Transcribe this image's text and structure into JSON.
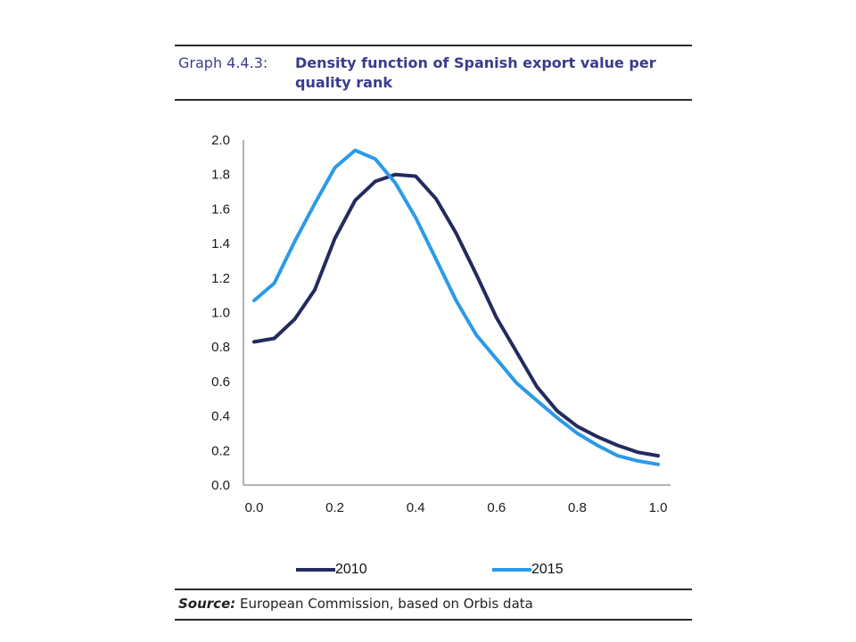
{
  "header": {
    "label": "Graph 4.4.3:",
    "title": "Density function of Spanish export value per quality rank"
  },
  "source": {
    "label": "Source:",
    "text": "European Commission, based on Orbis data"
  },
  "colors": {
    "title": "#3b3b8f",
    "series_2010": "#252a5e",
    "series_2015": "#2c9ae8",
    "axis": "#9a9a9a"
  },
  "chart_data": {
    "type": "line",
    "title": "Density function of Spanish export value per quality rank",
    "xlabel": "",
    "ylabel": "",
    "xlim": [
      0,
      1
    ],
    "ylim": [
      0,
      2
    ],
    "x_ticks": [
      "0.0",
      "0.2",
      "0.4",
      "0.6",
      "0.8",
      "1.0"
    ],
    "y_ticks": [
      "0.0",
      "0.2",
      "0.4",
      "0.6",
      "0.8",
      "1.0",
      "1.2",
      "1.4",
      "1.6",
      "1.8",
      "2.0"
    ],
    "grid": false,
    "legend_position": "bottom",
    "x": [
      0.0,
      0.05,
      0.1,
      0.15,
      0.2,
      0.25,
      0.3,
      0.35,
      0.4,
      0.45,
      0.5,
      0.55,
      0.6,
      0.65,
      0.7,
      0.75,
      0.8,
      0.85,
      0.9,
      0.95,
      1.0
    ],
    "series": [
      {
        "name": "2010",
        "color": "#252a5e",
        "values": [
          0.83,
          0.85,
          0.96,
          1.13,
          1.43,
          1.65,
          1.76,
          1.8,
          1.79,
          1.66,
          1.46,
          1.22,
          0.97,
          0.77,
          0.57,
          0.43,
          0.34,
          0.28,
          0.23,
          0.19,
          0.17
        ]
      },
      {
        "name": "2015",
        "color": "#2c9ae8",
        "values": [
          1.07,
          1.17,
          1.41,
          1.63,
          1.84,
          1.94,
          1.89,
          1.75,
          1.55,
          1.31,
          1.07,
          0.87,
          0.73,
          0.59,
          0.49,
          0.39,
          0.3,
          0.23,
          0.17,
          0.14,
          0.12
        ]
      }
    ]
  }
}
